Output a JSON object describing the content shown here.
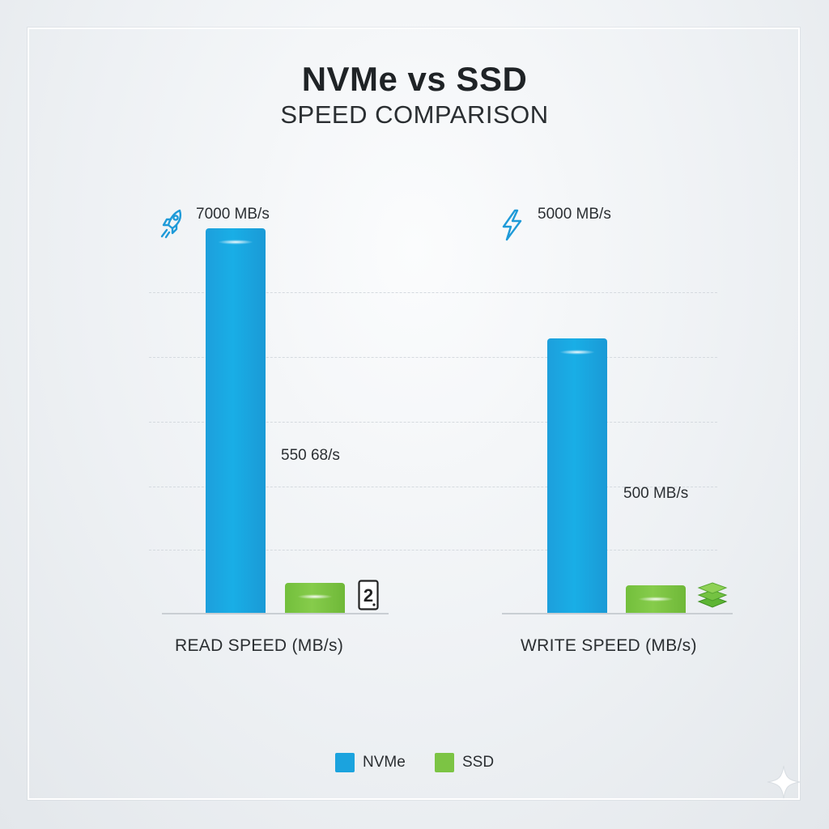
{
  "chart_data": {
    "type": "bar",
    "title": "NVMe vs SSD",
    "subtitle": "SPEED COMPARISON",
    "categories": [
      "READ SPEED (MB/s)",
      "WRITE SPEED (MB/s)"
    ],
    "series": [
      {
        "name": "NVMe",
        "values": [
          7000,
          5000
        ],
        "labels": [
          "7000 MB/s",
          "5000 MB/s"
        ],
        "color": "#1ba3de"
      },
      {
        "name": "SSD",
        "values": [
          550,
          500
        ],
        "labels": [
          "550 68/s",
          "500 MB/s"
        ],
        "color": "#7cc444"
      }
    ],
    "grid": true,
    "legend": "bottom-center"
  },
  "icons": {
    "read_nvme": "rocket-icon",
    "read_ssd": "hard-drive-icon",
    "read_ssd_glyph": "2",
    "write_nvme": "lightning-icon",
    "write_ssd": "layers-icon",
    "corner": "sparkle-icon"
  }
}
